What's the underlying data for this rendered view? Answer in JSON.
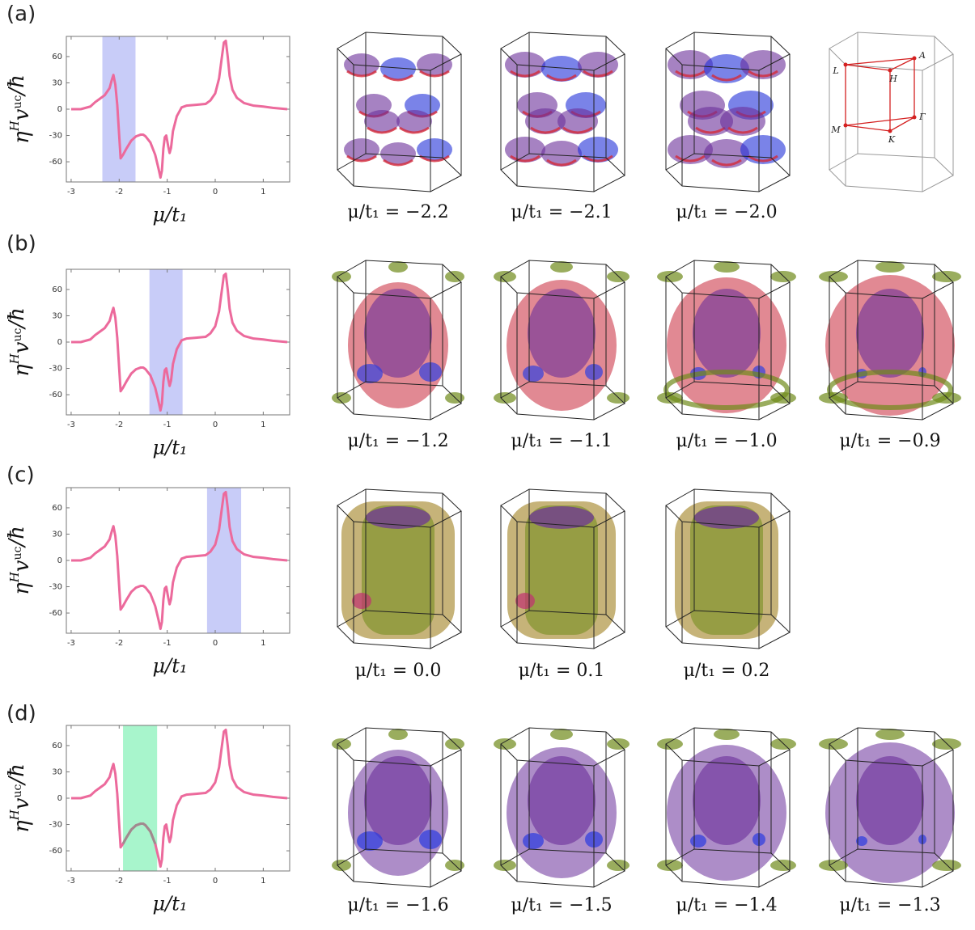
{
  "chart_data": [
    {
      "type": "line",
      "panel_label": "(a)",
      "xlabel": "μ/t₁",
      "ylabel": [
        "η",
        "H",
        "v",
        "uc",
        "/ħ"
      ],
      "x": [
        -3,
        -2.8,
        -2.6,
        -2.5,
        -2.4,
        -2.3,
        -2.2,
        -2.15,
        -2.12,
        -2.08,
        -2.04,
        -2.0,
        -1.97,
        -1.92,
        -1.85,
        -1.75,
        -1.65,
        -1.55,
        -1.5,
        -1.45,
        -1.35,
        -1.25,
        -1.18,
        -1.14,
        -1.11,
        -1.08,
        -1.05,
        -1.02,
        -0.98,
        -0.95,
        -0.92,
        -0.88,
        -0.8,
        -0.7,
        -0.6,
        -0.4,
        -0.2,
        -0.1,
        0,
        0.08,
        0.14,
        0.18,
        0.22,
        0.26,
        0.3,
        0.36,
        0.45,
        0.6,
        0.8,
        1.0,
        1.2,
        1.5
      ],
      "series": [
        {
          "color": "#ec6a9c",
          "values": [
            0,
            0,
            3,
            8,
            12,
            16,
            24,
            34,
            39,
            28,
            5,
            -30,
            -56,
            -52,
            -45,
            -36,
            -31,
            -29,
            -29,
            -31,
            -38,
            -52,
            -68,
            -78,
            -70,
            -45,
            -32,
            -30,
            -42,
            -50,
            -44,
            -25,
            -8,
            2,
            4,
            5,
            6,
            10,
            18,
            35,
            60,
            76,
            78,
            60,
            38,
            22,
            13,
            7,
            4,
            3,
            1.5,
            0
          ]
        }
      ],
      "xlim": [
        -3.1,
        1.55
      ],
      "ylim": [
        -83,
        83
      ],
      "xticks": [
        -3,
        -2,
        -1,
        0,
        1
      ],
      "yticks": [
        -60,
        -30,
        0,
        30,
        60
      ],
      "highlight": [
        -2.35,
        -1.66
      ],
      "highlight_color": "#c8ccf8",
      "snapshots": [
        "μ/t₁ = −2.2",
        "μ/t₁ = −2.1",
        "μ/t₁ = −2.0"
      ],
      "bz_labels": [
        "L",
        "H",
        "A",
        "M",
        "K",
        "Γ"
      ]
    },
    {
      "type": "line",
      "panel_label": "(b)",
      "xlabel": "μ/t₁",
      "ylabel": [
        "η",
        "H",
        "v",
        "uc",
        "/ħ"
      ],
      "x": [
        -3,
        -2.8,
        -2.6,
        -2.5,
        -2.4,
        -2.3,
        -2.2,
        -2.15,
        -2.12,
        -2.08,
        -2.04,
        -2.0,
        -1.97,
        -1.92,
        -1.85,
        -1.75,
        -1.65,
        -1.55,
        -1.5,
        -1.45,
        -1.35,
        -1.25,
        -1.18,
        -1.14,
        -1.11,
        -1.08,
        -1.05,
        -1.02,
        -0.98,
        -0.95,
        -0.92,
        -0.88,
        -0.8,
        -0.7,
        -0.6,
        -0.4,
        -0.2,
        -0.1,
        0,
        0.08,
        0.14,
        0.18,
        0.22,
        0.26,
        0.3,
        0.36,
        0.45,
        0.6,
        0.8,
        1.0,
        1.2,
        1.5
      ],
      "series": [
        {
          "color": "#ec6a9c",
          "values": [
            0,
            0,
            3,
            8,
            12,
            16,
            24,
            34,
            39,
            28,
            5,
            -30,
            -56,
            -52,
            -45,
            -36,
            -31,
            -29,
            -29,
            -31,
            -38,
            -52,
            -68,
            -78,
            -70,
            -45,
            -32,
            -30,
            -42,
            -50,
            -44,
            -25,
            -8,
            2,
            4,
            5,
            6,
            10,
            18,
            35,
            60,
            76,
            78,
            60,
            38,
            22,
            13,
            7,
            4,
            3,
            1.5,
            0
          ]
        }
      ],
      "xlim": [
        -3.1,
        1.55
      ],
      "ylim": [
        -83,
        83
      ],
      "xticks": [
        -3,
        -2,
        -1,
        0,
        1
      ],
      "yticks": [
        -60,
        -30,
        0,
        30,
        60
      ],
      "highlight": [
        -1.37,
        -0.68
      ],
      "highlight_color": "#c8ccf8",
      "snapshots": [
        "μ/t₁ = −1.2",
        "μ/t₁ = −1.1",
        "μ/t₁ = −1.0",
        "μ/t₁ = −0.9"
      ]
    },
    {
      "type": "line",
      "panel_label": "(c)",
      "xlabel": "μ/t₁",
      "ylabel": [
        "η",
        "H",
        "v",
        "uc",
        "/ħ"
      ],
      "x": [
        -3,
        -2.8,
        -2.6,
        -2.5,
        -2.4,
        -2.3,
        -2.2,
        -2.15,
        -2.12,
        -2.08,
        -2.04,
        -2.0,
        -1.97,
        -1.92,
        -1.85,
        -1.75,
        -1.65,
        -1.55,
        -1.5,
        -1.45,
        -1.35,
        -1.25,
        -1.18,
        -1.14,
        -1.11,
        -1.08,
        -1.05,
        -1.02,
        -0.98,
        -0.95,
        -0.92,
        -0.88,
        -0.8,
        -0.7,
        -0.6,
        -0.4,
        -0.2,
        -0.1,
        0,
        0.08,
        0.14,
        0.18,
        0.22,
        0.26,
        0.3,
        0.36,
        0.45,
        0.6,
        0.8,
        1.0,
        1.2,
        1.5
      ],
      "series": [
        {
          "color": "#ec6a9c",
          "values": [
            0,
            0,
            3,
            8,
            12,
            16,
            24,
            34,
            39,
            28,
            5,
            -30,
            -56,
            -52,
            -45,
            -36,
            -31,
            -29,
            -29,
            -31,
            -38,
            -52,
            -68,
            -78,
            -70,
            -45,
            -32,
            -30,
            -42,
            -50,
            -44,
            -25,
            -8,
            2,
            4,
            5,
            6,
            10,
            18,
            35,
            60,
            76,
            78,
            60,
            38,
            22,
            13,
            7,
            4,
            3,
            1.5,
            0
          ]
        }
      ],
      "xlim": [
        -3.1,
        1.55
      ],
      "ylim": [
        -83,
        83
      ],
      "xticks": [
        -3,
        -2,
        -1,
        0,
        1
      ],
      "yticks": [
        -60,
        -30,
        0,
        30,
        60
      ],
      "highlight": [
        -0.17,
        0.54
      ],
      "highlight_color": "#c8ccf8",
      "snapshots": [
        "μ/t₁ = 0.0",
        "μ/t₁ = 0.1",
        "μ/t₁ = 0.2"
      ]
    },
    {
      "type": "line",
      "panel_label": "(d)",
      "xlabel": "μ/t₁",
      "ylabel": [
        "η",
        "H",
        "v",
        "uc",
        "/ħ"
      ],
      "x": [
        -3,
        -2.8,
        -2.6,
        -2.5,
        -2.4,
        -2.3,
        -2.2,
        -2.15,
        -2.12,
        -2.08,
        -2.04,
        -2.0,
        -1.97,
        -1.92,
        -1.85,
        -1.75,
        -1.65,
        -1.55,
        -1.5,
        -1.45,
        -1.35,
        -1.25,
        -1.18,
        -1.14,
        -1.11,
        -1.08,
        -1.05,
        -1.02,
        -0.98,
        -0.95,
        -0.92,
        -0.88,
        -0.8,
        -0.7,
        -0.6,
        -0.4,
        -0.2,
        -0.1,
        0,
        0.08,
        0.14,
        0.18,
        0.22,
        0.26,
        0.3,
        0.36,
        0.45,
        0.6,
        0.8,
        1.0,
        1.2,
        1.5
      ],
      "series": [
        {
          "color": "#ec6a9c",
          "values": [
            0,
            0,
            3,
            8,
            12,
            16,
            24,
            34,
            39,
            28,
            5,
            -30,
            -56,
            -52,
            -45,
            -36,
            -31,
            -29,
            -29,
            -31,
            -38,
            -52,
            -68,
            -78,
            -70,
            -45,
            -32,
            -30,
            -42,
            -50,
            -44,
            -25,
            -8,
            2,
            4,
            5,
            6,
            10,
            18,
            35,
            60,
            76,
            78,
            60,
            38,
            22,
            13,
            7,
            4,
            3,
            1.5,
            0
          ]
        }
      ],
      "xlim": [
        -3.1,
        1.55
      ],
      "ylim": [
        -83,
        83
      ],
      "xticks": [
        -3,
        -2,
        -1,
        0,
        1
      ],
      "yticks": [
        -60,
        -30,
        0,
        30,
        60
      ],
      "highlight": [
        -1.92,
        -1.21
      ],
      "highlight_color": "#a8f5cc",
      "highlight_curve_color": "#a08a8e",
      "snapshots": [
        "μ/t₁ = −1.6",
        "μ/t₁ = −1.5",
        "μ/t₁ = −1.4",
        "μ/t₁ = −1.3"
      ]
    }
  ]
}
